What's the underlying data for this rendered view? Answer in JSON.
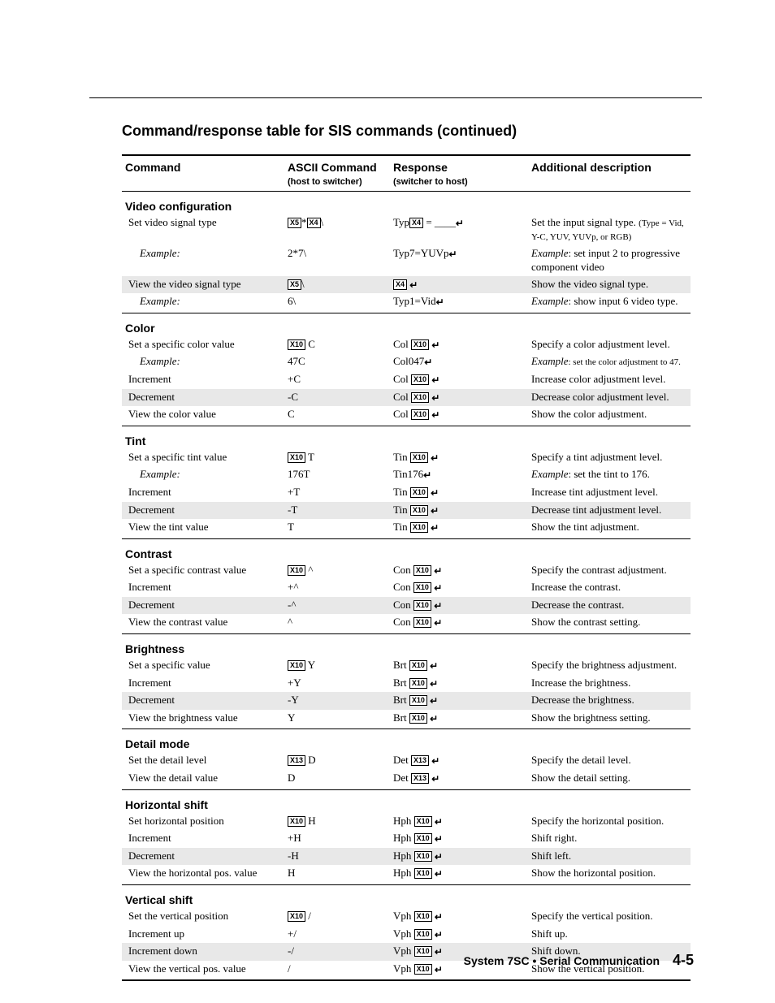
{
  "title": "Command/response table for SIS commands (continued)",
  "headers": {
    "command": "Command",
    "ascii": "ASCII Command",
    "ascii_sub": "(host to switcher)",
    "response": "Response",
    "response_sub": "(switcher to host)",
    "desc": "Additional description"
  },
  "footer_left": "System 7SC • Serial Communication",
  "footer_page": "4-5",
  "sections": [
    {
      "title": "Video configuration",
      "rows": [
        {
          "indent": 1,
          "shaded": false,
          "cmd": "Set video signal type",
          "ascii": [
            {
              "x": "X5"
            },
            {
              "t": "*"
            },
            {
              "x": "X4"
            },
            {
              "t": "\\"
            }
          ],
          "resp": [
            {
              "t": "Typ"
            },
            {
              "x": "X4"
            },
            {
              "t": " = ____"
            },
            {
              "ret": true
            }
          ],
          "desc": "Set the input signal type.  ",
          "desc_sub": "(Type = Vid, Y-C, YUV, YUVp, or RGB)"
        },
        {
          "indent": 2,
          "shaded": false,
          "cmd": "Example:",
          "ascii": [
            {
              "t": "2*7\\"
            }
          ],
          "resp": [
            {
              "t": "Typ7=YUVp"
            },
            {
              "ret": true
            }
          ],
          "desc_italic": "Example",
          "desc": ": set input 2 to progressive component video"
        },
        {
          "indent": 1,
          "shaded": true,
          "cmd": "View the video signal type",
          "ascii": [
            {
              "x": "X5"
            },
            {
              "t": "\\"
            }
          ],
          "resp": [
            {
              "x": "X4"
            },
            {
              "t": " "
            },
            {
              "ret": true
            }
          ],
          "desc": "Show the video signal type."
        },
        {
          "indent": 2,
          "shaded": false,
          "cmd": "Example:",
          "ascii": [
            {
              "t": "6\\"
            }
          ],
          "resp": [
            {
              "t": "Typ1=Vid"
            },
            {
              "ret": true
            }
          ],
          "desc_italic": "Example",
          "desc": ": show input 6 video type."
        }
      ]
    },
    {
      "title": "Color",
      "rows": [
        {
          "indent": 1,
          "shaded": false,
          "cmd": "Set a specific color value",
          "ascii": [
            {
              "x": "X10"
            },
            {
              "t": " C"
            }
          ],
          "resp": [
            {
              "t": "Col "
            },
            {
              "x": "X10"
            },
            {
              "t": " "
            },
            {
              "ret": true
            }
          ],
          "desc": "Specify a color adjustment level."
        },
        {
          "indent": 2,
          "shaded": false,
          "cmd": "Example:",
          "ascii": [
            {
              "t": "47C"
            }
          ],
          "resp": [
            {
              "t": "Col047"
            },
            {
              "ret": true
            }
          ],
          "desc_italic": "Example",
          "desc_sub": ": set the color adjustment to 47."
        },
        {
          "indent": 1,
          "shaded": false,
          "cmd": "Increment",
          "ascii": [
            {
              "t": "+C"
            }
          ],
          "resp": [
            {
              "t": "Col "
            },
            {
              "x": "X10"
            },
            {
              "t": " "
            },
            {
              "ret": true
            }
          ],
          "desc": "Increase color adjustment level."
        },
        {
          "indent": 1,
          "shaded": true,
          "cmd": "Decrement",
          "ascii": [
            {
              "t": "-C"
            }
          ],
          "resp": [
            {
              "t": "Col "
            },
            {
              "x": "X10"
            },
            {
              "t": " "
            },
            {
              "ret": true
            }
          ],
          "desc": "Decrease color adjustment level."
        },
        {
          "indent": 1,
          "shaded": false,
          "cmd": "View the color value",
          "ascii": [
            {
              "t": "C"
            }
          ],
          "resp": [
            {
              "t": "Col "
            },
            {
              "x": "X10"
            },
            {
              "t": " "
            },
            {
              "ret": true
            }
          ],
          "desc": "Show the color adjustment."
        }
      ]
    },
    {
      "title": "Tint",
      "rows": [
        {
          "indent": 1,
          "shaded": false,
          "cmd": "Set a specific tint value",
          "ascii": [
            {
              "x": "X10"
            },
            {
              "t": " T"
            }
          ],
          "resp": [
            {
              "t": "Tin "
            },
            {
              "x": "X10"
            },
            {
              "t": " "
            },
            {
              "ret": true
            }
          ],
          "desc": "Specify a tint adjustment level."
        },
        {
          "indent": 2,
          "shaded": false,
          "cmd": "Example:",
          "ascii": [
            {
              "t": "176T"
            }
          ],
          "resp": [
            {
              "t": "Tin176"
            },
            {
              "ret": true
            }
          ],
          "desc_italic": "Example",
          "desc": ": set the tint to 176."
        },
        {
          "indent": 1,
          "shaded": false,
          "cmd": "Increment",
          "ascii": [
            {
              "t": "+T"
            }
          ],
          "resp": [
            {
              "t": "Tin "
            },
            {
              "x": "X10"
            },
            {
              "t": " "
            },
            {
              "ret": true
            }
          ],
          "desc": "Increase tint adjustment level."
        },
        {
          "indent": 1,
          "shaded": true,
          "cmd": "Decrement",
          "ascii": [
            {
              "t": "-T"
            }
          ],
          "resp": [
            {
              "t": "Tin "
            },
            {
              "x": "X10"
            },
            {
              "t": " "
            },
            {
              "ret": true
            }
          ],
          "desc": "Decrease tint adjustment level."
        },
        {
          "indent": 1,
          "shaded": false,
          "cmd": "View the tint value",
          "ascii": [
            {
              "t": "T"
            }
          ],
          "resp": [
            {
              "t": "Tin "
            },
            {
              "x": "X10"
            },
            {
              "t": " "
            },
            {
              "ret": true
            }
          ],
          "desc": "Show the tint adjustment."
        }
      ]
    },
    {
      "title": "Contrast",
      "rows": [
        {
          "indent": 1,
          "shaded": false,
          "cmd": "Set a specific contrast  value",
          "ascii": [
            {
              "x": "X10"
            },
            {
              "t": " ^"
            }
          ],
          "resp": [
            {
              "t": "Con "
            },
            {
              "x": "X10"
            },
            {
              "t": " "
            },
            {
              "ret": true
            }
          ],
          "desc": "Specify the contrast adjustment."
        },
        {
          "indent": 1,
          "shaded": false,
          "cmd": "Increment",
          "ascii": [
            {
              "t": "+^"
            }
          ],
          "resp": [
            {
              "t": "Con "
            },
            {
              "x": "X10"
            },
            {
              "t": " "
            },
            {
              "ret": true
            }
          ],
          "desc": "Increase the contrast."
        },
        {
          "indent": 1,
          "shaded": true,
          "cmd": "Decrement",
          "ascii": [
            {
              "t": "-^"
            }
          ],
          "resp": [
            {
              "t": "Con "
            },
            {
              "x": "X10"
            },
            {
              "t": " "
            },
            {
              "ret": true
            }
          ],
          "desc": "Decrease the contrast."
        },
        {
          "indent": 1,
          "shaded": false,
          "cmd": "View the contrast value",
          "ascii": [
            {
              "t": "^"
            }
          ],
          "resp": [
            {
              "t": "Con "
            },
            {
              "x": "X10"
            },
            {
              "t": " "
            },
            {
              "ret": true
            }
          ],
          "desc": "Show the contrast setting."
        }
      ]
    },
    {
      "title": "Brightness",
      "rows": [
        {
          "indent": 1,
          "shaded": false,
          "cmd": "Set a specific value",
          "ascii": [
            {
              "x": "X10"
            },
            {
              "t": " Y"
            }
          ],
          "resp": [
            {
              "t": "Brt "
            },
            {
              "x": "X10"
            },
            {
              "t": " "
            },
            {
              "ret": true
            }
          ],
          "desc": "Specify the brightness adjustment."
        },
        {
          "indent": 1,
          "shaded": false,
          "cmd": "Increment",
          "ascii": [
            {
              "t": "+Y"
            }
          ],
          "resp": [
            {
              "t": "Brt "
            },
            {
              "x": "X10"
            },
            {
              "t": " "
            },
            {
              "ret": true
            }
          ],
          "desc": "Increase the brightness."
        },
        {
          "indent": 1,
          "shaded": true,
          "cmd": "Decrement",
          "ascii": [
            {
              "t": "-Y"
            }
          ],
          "resp": [
            {
              "t": "Brt "
            },
            {
              "x": "X10"
            },
            {
              "t": " "
            },
            {
              "ret": true
            }
          ],
          "desc": "Decrease the brightness."
        },
        {
          "indent": 1,
          "shaded": false,
          "cmd": "View the brightness value",
          "ascii": [
            {
              "t": "Y"
            }
          ],
          "resp": [
            {
              "t": "Brt "
            },
            {
              "x": "X10"
            },
            {
              "t": " "
            },
            {
              "ret": true
            }
          ],
          "desc": "Show the brightness setting."
        }
      ]
    },
    {
      "title": "Detail mode",
      "rows": [
        {
          "indent": 1,
          "shaded": false,
          "cmd": "Set the detail level",
          "ascii": [
            {
              "x": "X13"
            },
            {
              "t": " D"
            }
          ],
          "resp": [
            {
              "t": "Det "
            },
            {
              "x": "X13"
            },
            {
              "t": " "
            },
            {
              "ret": true
            }
          ],
          "desc": "Specify the detail level."
        },
        {
          "indent": 1,
          "shaded": false,
          "cmd": "View the detail value",
          "ascii": [
            {
              "t": "D"
            }
          ],
          "resp": [
            {
              "t": "Det "
            },
            {
              "x": "X13"
            },
            {
              "t": " "
            },
            {
              "ret": true
            }
          ],
          "desc": "Show the detail setting."
        }
      ]
    },
    {
      "title": "Horizontal shift",
      "rows": [
        {
          "indent": 1,
          "shaded": false,
          "cmd": "Set horizontal position",
          "ascii": [
            {
              "x": "X10"
            },
            {
              "t": " H"
            }
          ],
          "resp": [
            {
              "t": "Hph "
            },
            {
              "x": "X10"
            },
            {
              "t": "  "
            },
            {
              "ret": true
            }
          ],
          "desc": "Specify the horizontal position."
        },
        {
          "indent": 1,
          "shaded": false,
          "cmd": "Increment",
          "ascii": [
            {
              "t": "+H"
            }
          ],
          "resp": [
            {
              "t": "Hph "
            },
            {
              "x": "X10"
            },
            {
              "t": "  "
            },
            {
              "ret": true
            }
          ],
          "desc": "Shift right."
        },
        {
          "indent": 1,
          "shaded": true,
          "cmd": "Decrement",
          "ascii": [
            {
              "t": "-H"
            }
          ],
          "resp": [
            {
              "t": "Hph "
            },
            {
              "x": "X10"
            },
            {
              "t": "  "
            },
            {
              "ret": true
            }
          ],
          "desc": "Shift left."
        },
        {
          "indent": 1,
          "shaded": false,
          "cmd": "View the horizontal pos. value",
          "ascii": [
            {
              "t": "H"
            }
          ],
          "resp": [
            {
              "t": "Hph "
            },
            {
              "x": "X10"
            },
            {
              "t": "  "
            },
            {
              "ret": true
            }
          ],
          "desc": "Show the horizontal position."
        }
      ]
    },
    {
      "title": "Vertical shift",
      "rows": [
        {
          "indent": 1,
          "shaded": false,
          "cmd": "Set the vertical position",
          "ascii": [
            {
              "x": "X10"
            },
            {
              "t": " /"
            }
          ],
          "resp": [
            {
              "t": "Vph "
            },
            {
              "x": "X10"
            },
            {
              "t": "  "
            },
            {
              "ret": true
            }
          ],
          "desc": "Specify the vertical position."
        },
        {
          "indent": 1,
          "shaded": false,
          "cmd": "Increment up",
          "ascii": [
            {
              "t": "+/"
            }
          ],
          "resp": [
            {
              "t": "Vph "
            },
            {
              "x": "X10"
            },
            {
              "t": "  "
            },
            {
              "ret": true
            }
          ],
          "desc": "Shift up."
        },
        {
          "indent": 1,
          "shaded": true,
          "cmd": "Increment down",
          "ascii": [
            {
              "t": "-/"
            }
          ],
          "resp": [
            {
              "t": "Vph "
            },
            {
              "x": "X10"
            },
            {
              "t": "  "
            },
            {
              "ret": true
            }
          ],
          "desc": "Shift down."
        },
        {
          "indent": 1,
          "shaded": false,
          "cmd": "View the vertical pos. value",
          "ascii": [
            {
              "t": "/"
            }
          ],
          "resp": [
            {
              "t": "Vph "
            },
            {
              "x": "X10"
            },
            {
              "t": "  "
            },
            {
              "ret": true
            }
          ],
          "desc": "Show the vertical position."
        }
      ]
    }
  ]
}
